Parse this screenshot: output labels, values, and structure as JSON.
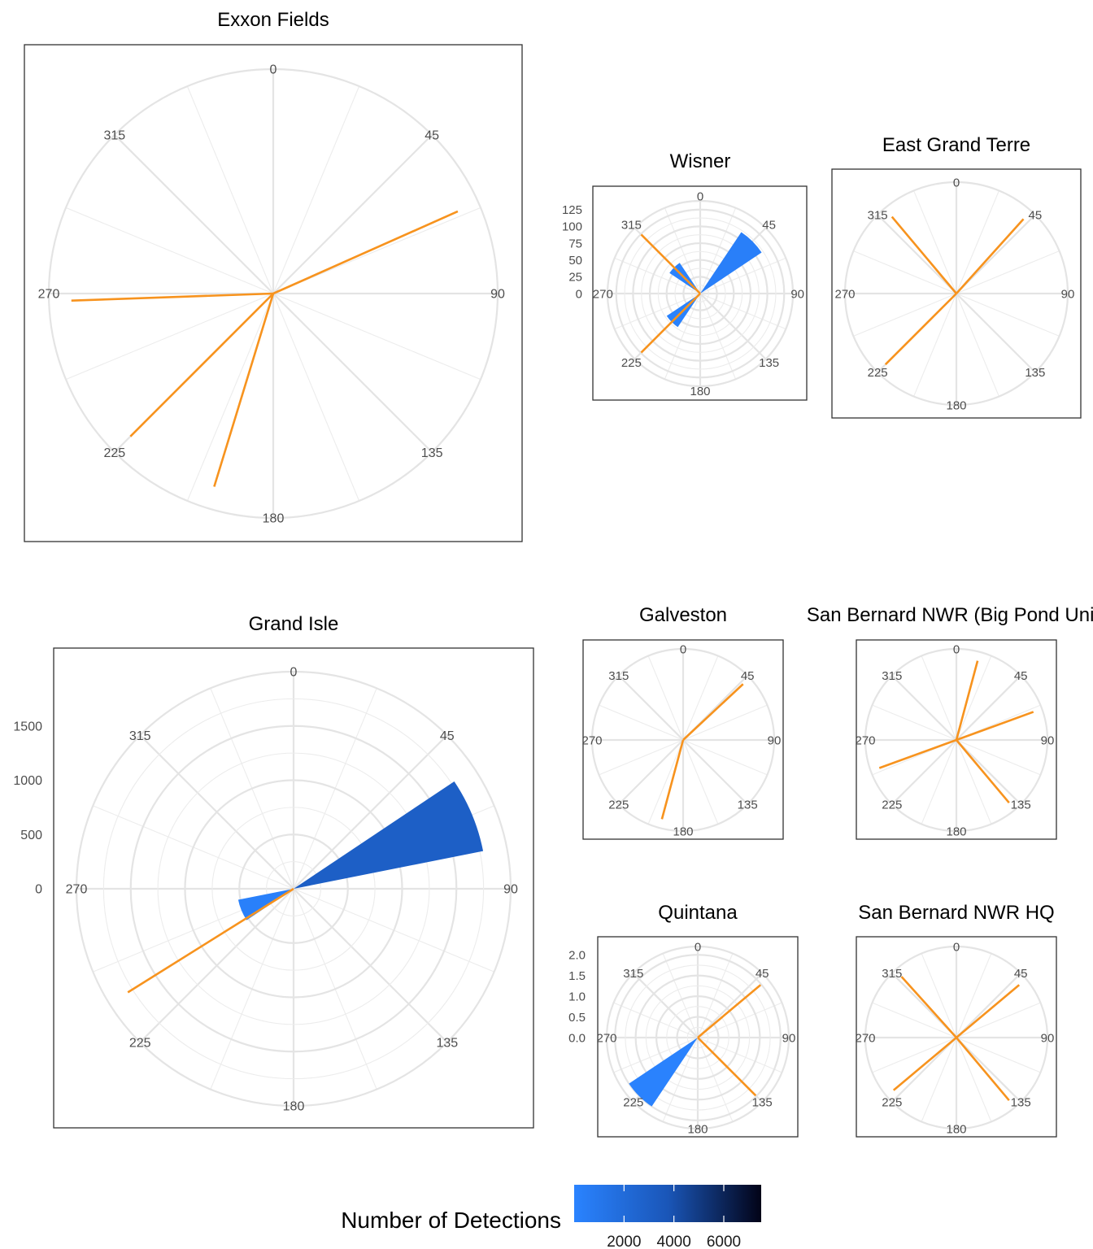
{
  "colors": {
    "arrow": "#F7931E",
    "bar_low": "#2A83FF",
    "bar_mid": "#1A56B8",
    "bar_high": "#020317",
    "grid": "#E4E4E4",
    "frame": "#333333"
  },
  "legend": {
    "title": "Number of Detections",
    "ticks": [
      "2000",
      "4000",
      "6000"
    ],
    "tick_values": [
      2000,
      4000,
      6000
    ],
    "range": [
      0,
      7500
    ]
  },
  "chart_data": [
    {
      "type": "rose",
      "title": "Exxon Fields",
      "angle_ticks": [
        "0",
        "45",
        "90",
        "135",
        "180",
        "225",
        "270",
        "315"
      ],
      "radial_ticks": [],
      "bars": [],
      "arrows": [
        {
          "direction": 66
        },
        {
          "direction": 268
        },
        {
          "direction": 225
        },
        {
          "direction": 197
        }
      ]
    },
    {
      "type": "rose",
      "title": "Wisner",
      "angle_ticks": [
        "0",
        "45",
        "90",
        "135",
        "180",
        "225",
        "270",
        "315"
      ],
      "radial_ticks": [
        "0",
        "25",
        "50",
        "75",
        "100",
        "125"
      ],
      "rmax": 138,
      "bars": [
        {
          "direction": 45,
          "count": 110,
          "detections": 300
        },
        {
          "direction": 225,
          "count": 60,
          "detections": 120
        },
        {
          "direction": 315,
          "count": 55,
          "detections": 100
        }
      ],
      "arrows": [
        {
          "direction": 315
        },
        {
          "direction": 225
        }
      ]
    },
    {
      "type": "rose",
      "title": "East Grand Terre",
      "angle_ticks": [
        "0",
        "45",
        "90",
        "135",
        "180",
        "225",
        "270",
        "315"
      ],
      "radial_ticks": [],
      "bars": [],
      "arrows": [
        {
          "direction": 42
        },
        {
          "direction": 320
        },
        {
          "direction": 225
        }
      ]
    },
    {
      "type": "rose",
      "title": "Grand Isle",
      "angle_ticks": [
        "0",
        "45",
        "90",
        "135",
        "180",
        "225",
        "270",
        "315"
      ],
      "radial_ticks": [
        "0",
        "500",
        "1000",
        "1500"
      ],
      "rmax": 2000,
      "bars": [
        {
          "direction": 67.5,
          "count": 1780,
          "detections": 3000
        },
        {
          "direction": 247.5,
          "count": 520,
          "detections": 250
        }
      ],
      "arrows": [
        {
          "direction": 238
        }
      ]
    },
    {
      "type": "rose",
      "title": "Galveston",
      "angle_ticks": [
        "0",
        "45",
        "90",
        "135",
        "180",
        "225",
        "270",
        "315"
      ],
      "radial_ticks": [],
      "bars": [],
      "arrows": [
        {
          "direction": 47
        },
        {
          "direction": 195
        }
      ]
    },
    {
      "type": "rose",
      "title": "San Bernard NWR (Big Pond Unit)",
      "angle_ticks": [
        "0",
        "45",
        "90",
        "135",
        "180",
        "225",
        "270",
        "315"
      ],
      "radial_ticks": [],
      "bars": [],
      "arrows": [
        {
          "direction": 15
        },
        {
          "direction": 70
        },
        {
          "direction": 140
        },
        {
          "direction": 250
        }
      ]
    },
    {
      "type": "rose",
      "title": "Quintana",
      "angle_ticks": [
        "0",
        "45",
        "90",
        "135",
        "180",
        "225",
        "270",
        "315"
      ],
      "radial_ticks": [
        "0.0",
        "0.5",
        "1.0",
        "1.5",
        "2.0"
      ],
      "rmax": 2.2,
      "bars": [
        {
          "direction": 225,
          "count": 2.0,
          "detections": 80
        }
      ],
      "arrows": [
        {
          "direction": 50
        },
        {
          "direction": 135
        }
      ]
    },
    {
      "type": "rose",
      "title": "San Bernard NWR HQ",
      "angle_ticks": [
        "0",
        "45",
        "90",
        "135",
        "180",
        "225",
        "270",
        "315"
      ],
      "radial_ticks": [],
      "bars": [],
      "arrows": [
        {
          "direction": 50
        },
        {
          "direction": 140
        },
        {
          "direction": 230
        },
        {
          "direction": 318
        }
      ]
    }
  ]
}
